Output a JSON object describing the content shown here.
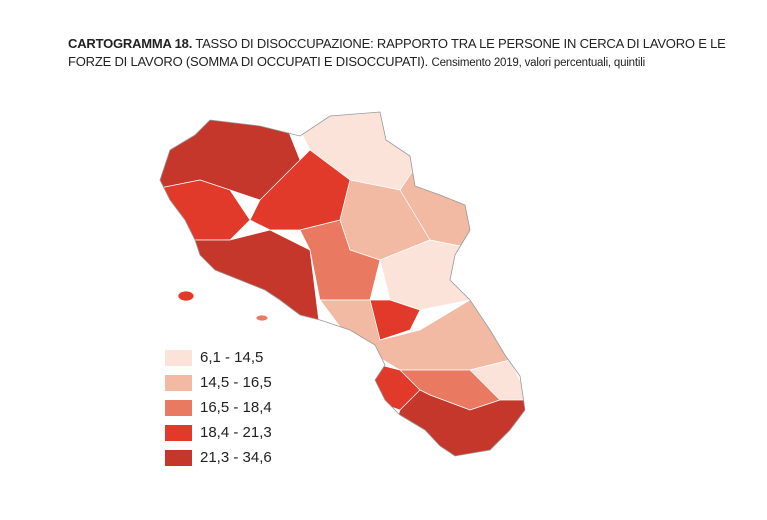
{
  "header": {
    "label": "CARTOGRAMMA 18.",
    "title": "TASSO DI DISOCCUPAZIONE: RAPPORTO TRA LE PERSONE IN CERCA DI LAVORO E LE FORZE DI LAVORO (SOMMA DI OCCUPATI E DISOCCUPATI).",
    "subtitle": "Censimento 2019, valori percentuali, quintili"
  },
  "legend": {
    "items": [
      {
        "label": "6,1 - 14,5",
        "color": "#fbe3da"
      },
      {
        "label": "14,5 - 16,5",
        "color": "#f2b9a3"
      },
      {
        "label": "16,5 - 18,4",
        "color": "#e97a61"
      },
      {
        "label": "18,4 - 21,3",
        "color": "#e13a2a"
      },
      {
        "label": "21,3 - 34,6",
        "color": "#c5372b"
      }
    ]
  }
}
